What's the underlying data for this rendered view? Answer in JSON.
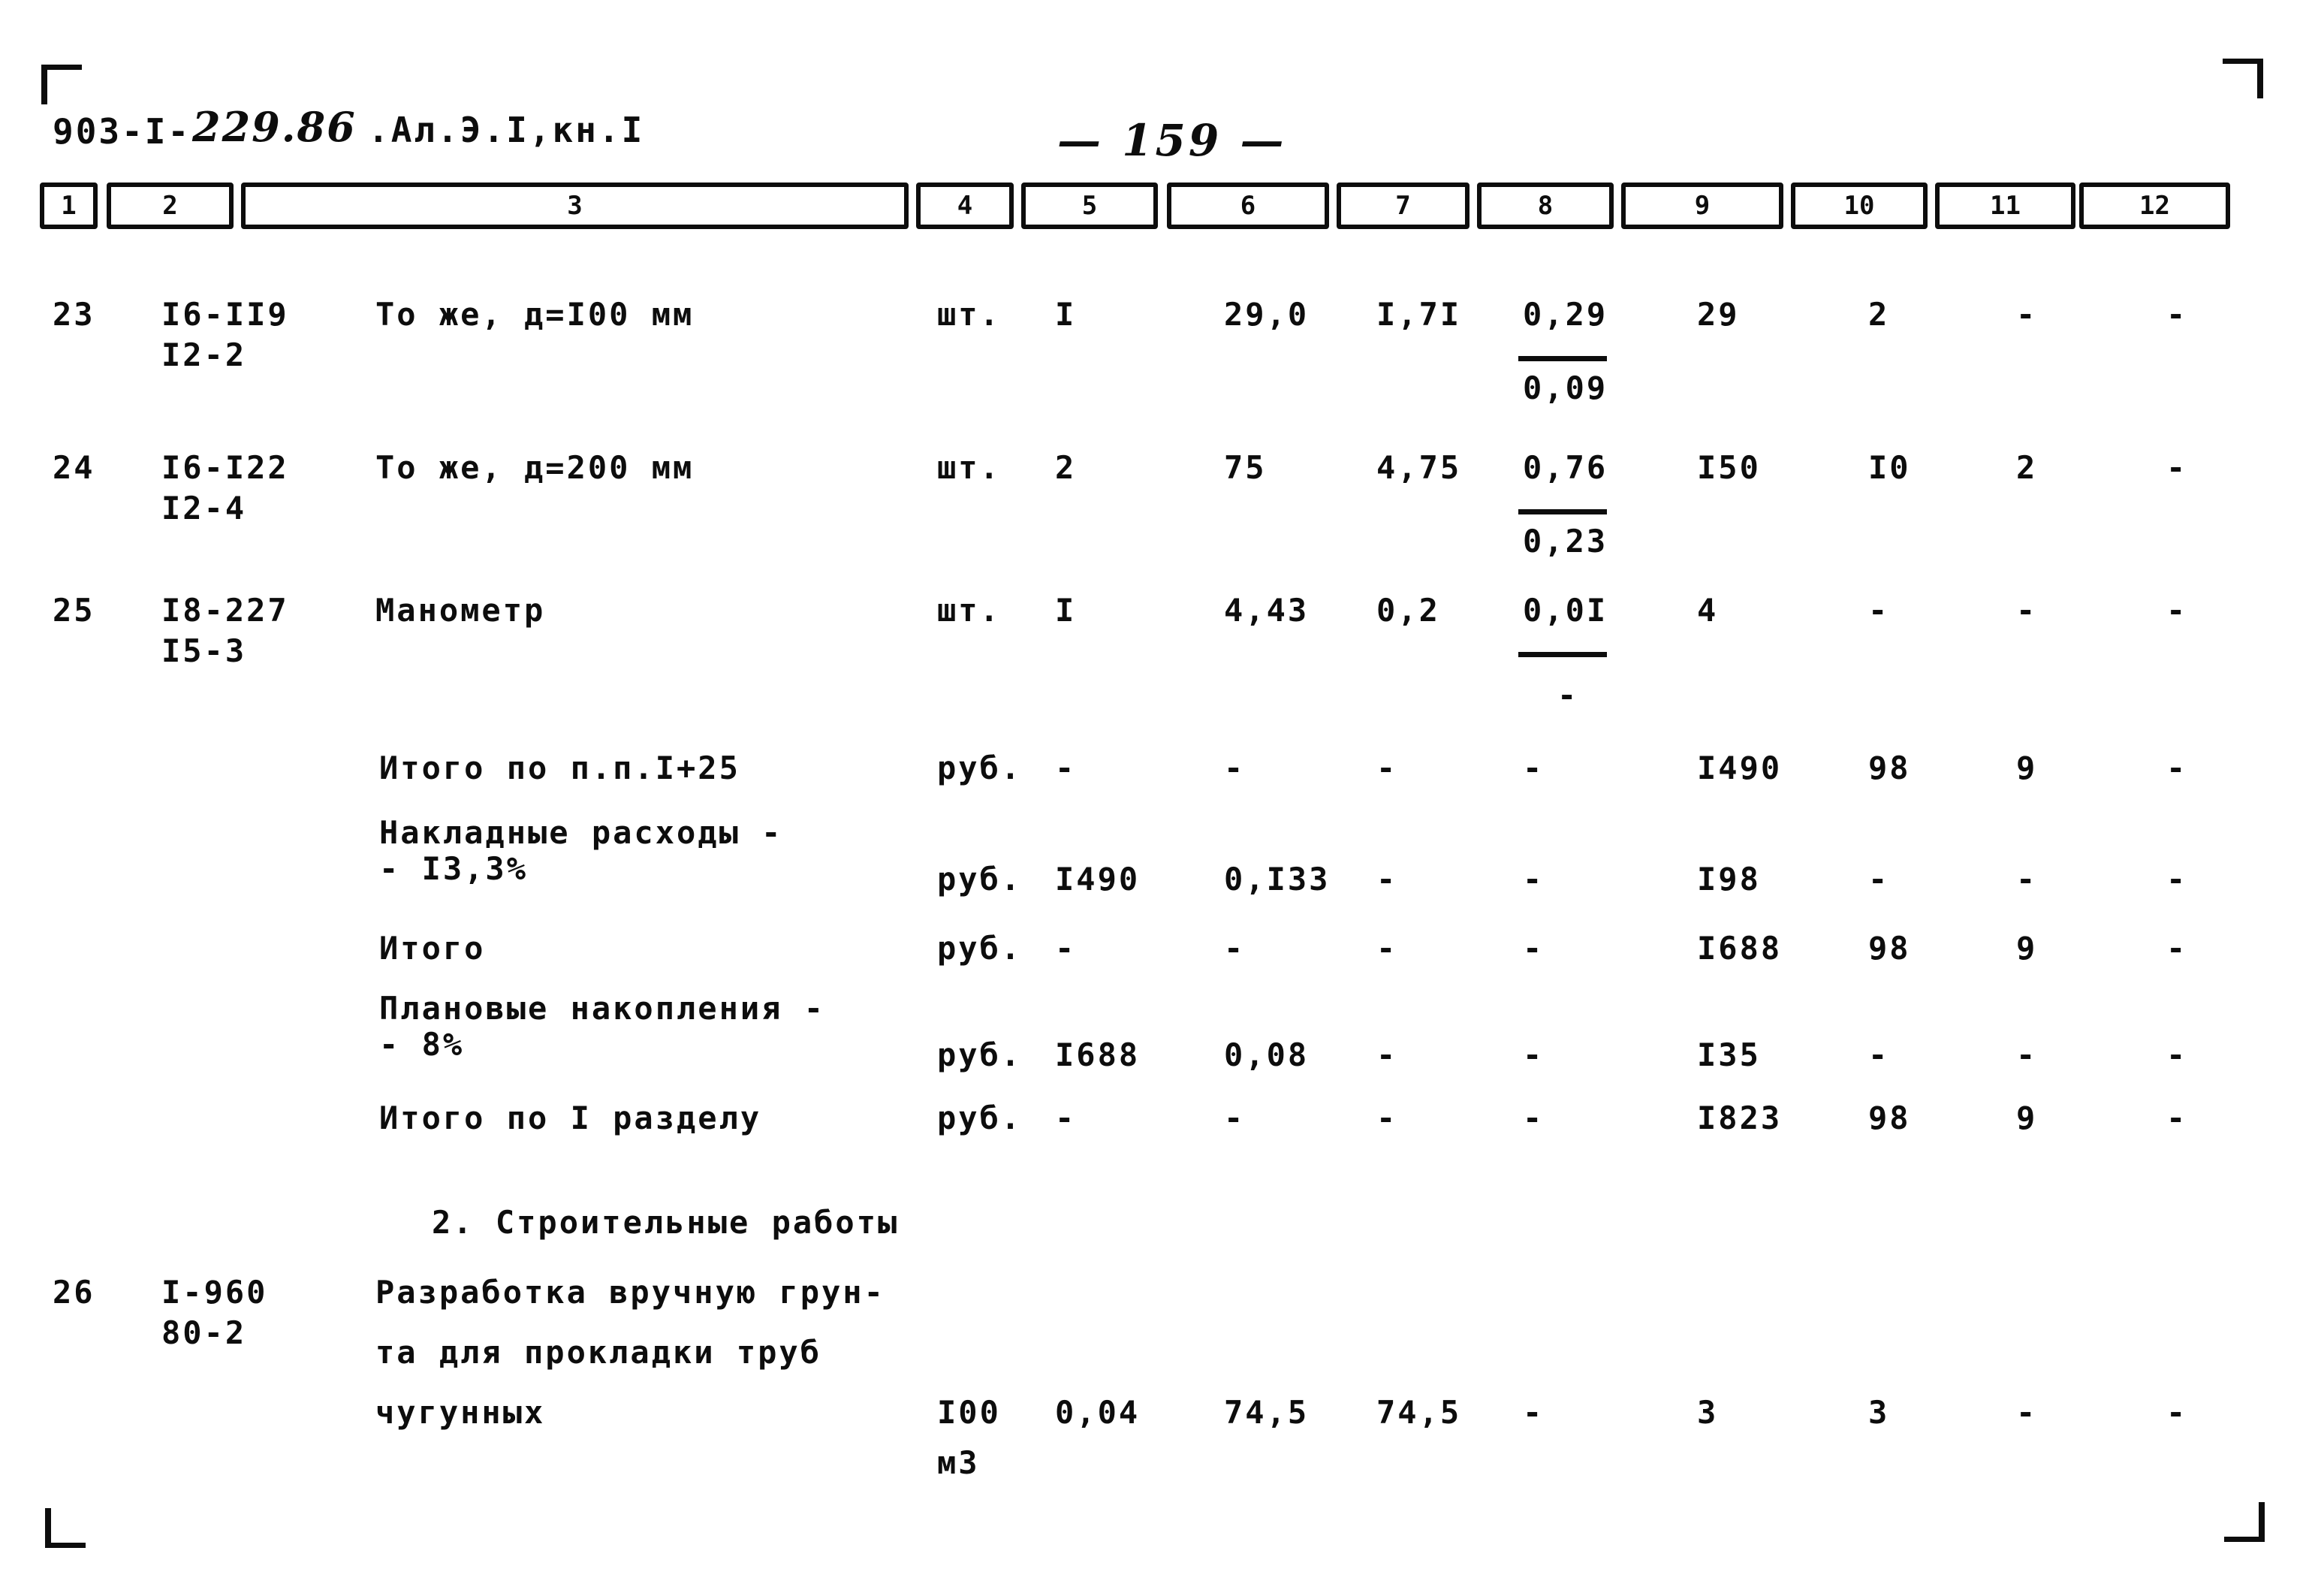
{
  "page": {
    "background": "#ffffff",
    "ink_color": "#0d0d0d",
    "doc_code_typed": "903-I-",
    "doc_code_hand": "229.86",
    "doc_series": ".Ал.Э.I,кн.I",
    "page_number": "— 159 —"
  },
  "table": {
    "column_headers": [
      "1",
      "2",
      "3",
      "4",
      "5",
      "6",
      "7",
      "8",
      "9",
      "10",
      "11",
      "12"
    ],
    "section_heading": "2. Строительные работы",
    "rows": [
      {
        "num": "23",
        "code": [
          "I6-II9",
          "I2-2"
        ],
        "desc": [
          "То же, д=I00 мм"
        ],
        "unit": [
          "шт."
        ],
        "c5": "I",
        "c6": "29,0",
        "c7": "I,7I",
        "c8": {
          "num": "0,29",
          "den": "0,09"
        },
        "c9": "29",
        "c10": "2",
        "c11": "-",
        "c12": "-"
      },
      {
        "num": "24",
        "code": [
          "I6-I22",
          "I2-4"
        ],
        "desc": [
          "То же, д=200 мм"
        ],
        "unit": [
          "шт."
        ],
        "c5": "2",
        "c6": "75",
        "c7": "4,75",
        "c8": {
          "num": "0,76",
          "den": "0,23"
        },
        "c9": "I50",
        "c10": "I0",
        "c11": "2",
        "c12": "-"
      },
      {
        "num": "25",
        "code": [
          "I8-227",
          "I5-3"
        ],
        "desc": [
          "Манометр"
        ],
        "unit": [
          "шт."
        ],
        "c5": "I",
        "c6": "4,43",
        "c7": "0,2",
        "c8": {
          "num": "0,0I",
          "den": "-"
        },
        "c9": "4",
        "c10": "-",
        "c11": "-",
        "c12": "-"
      },
      {
        "num": "",
        "code": [],
        "desc": [
          "Итого по п.п.I+25"
        ],
        "unit": [
          "руб."
        ],
        "c5": "-",
        "c6": "-",
        "c7": "-",
        "c8": "-",
        "c9": "I490",
        "c10": "98",
        "c11": "9",
        "c12": "-"
      },
      {
        "num": "",
        "code": [],
        "desc": [
          "Накладные расходы -",
          "- I3,3%"
        ],
        "unit": [
          "руб."
        ],
        "c5": "I490",
        "c6": "0,I33",
        "c7": "-",
        "c8": "-",
        "c9": "I98",
        "c10": "-",
        "c11": "-",
        "c12": "-"
      },
      {
        "num": "",
        "code": [],
        "desc": [
          "Итого"
        ],
        "unit": [
          "руб."
        ],
        "c5": "-",
        "c6": "-",
        "c7": "-",
        "c8": "-",
        "c9": "I688",
        "c10": "98",
        "c11": "9",
        "c12": "-"
      },
      {
        "num": "",
        "code": [],
        "desc": [
          "Плановые накопления -",
          "- 8%"
        ],
        "unit": [
          "руб."
        ],
        "c5": "I688",
        "c6": "0,08",
        "c7": "-",
        "c8": "-",
        "c9": "I35",
        "c10": "-",
        "c11": "-",
        "c12": "-"
      },
      {
        "num": "",
        "code": [],
        "desc": [
          "Итого по I разделу"
        ],
        "unit": [
          "руб."
        ],
        "c5": "-",
        "c6": "-",
        "c7": "-",
        "c8": "-",
        "c9": "I823",
        "c10": "98",
        "c11": "9",
        "c12": "-"
      },
      {
        "num": "26",
        "code": [
          "I-960",
          "80-2"
        ],
        "desc": [
          "Разработка вручную грун-",
          "та для прокладки труб",
          "чугунных"
        ],
        "unit": [
          "I00",
          "м3"
        ],
        "c5": "0,04",
        "c6": "74,5",
        "c7": "74,5",
        "c8": "-",
        "c9": "3",
        "c10": "3",
        "c11": "-",
        "c12": "-"
      }
    ]
  }
}
